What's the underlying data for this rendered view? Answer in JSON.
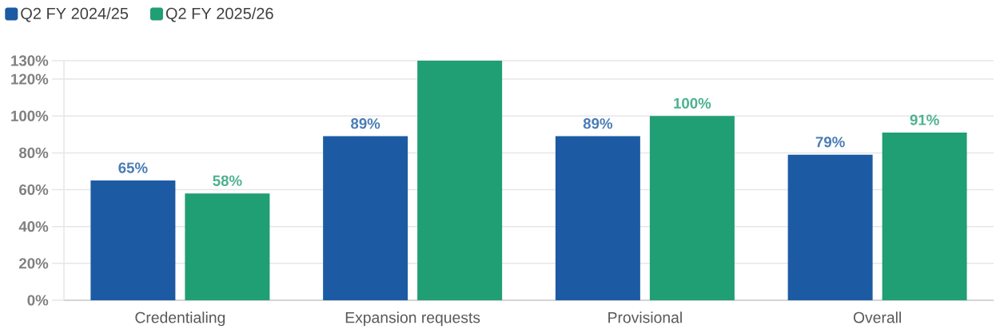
{
  "chart_data": {
    "type": "bar",
    "categories": [
      "Credentialing",
      "Expansion requests",
      "Provisional",
      "Overall"
    ],
    "series": [
      {
        "name": "Q2 FY 2024/25",
        "color": "#1c5ba3",
        "values": [
          65,
          89,
          89,
          79
        ],
        "value_labels": [
          "65%",
          "89%",
          "89%",
          "79%"
        ]
      },
      {
        "name": "Q2 FY 2025/26",
        "color": "#209e74",
        "values": [
          58,
          130,
          100,
          91
        ],
        "value_labels": [
          "58%",
          null,
          "100%",
          "91%"
        ]
      }
    ],
    "ylim": [
      0,
      130
    ],
    "yticks": [
      {
        "value": 0,
        "label": "0%"
      },
      {
        "value": 20,
        "label": "20%"
      },
      {
        "value": 40,
        "label": "40%"
      },
      {
        "value": 60,
        "label": "60%"
      },
      {
        "value": 80,
        "label": "80%"
      },
      {
        "value": 100,
        "label": "100%"
      },
      {
        "value": 120,
        "label": "120%"
      },
      {
        "value": 130,
        "label": "130%"
      }
    ],
    "grid": "y",
    "legend": "top left"
  }
}
